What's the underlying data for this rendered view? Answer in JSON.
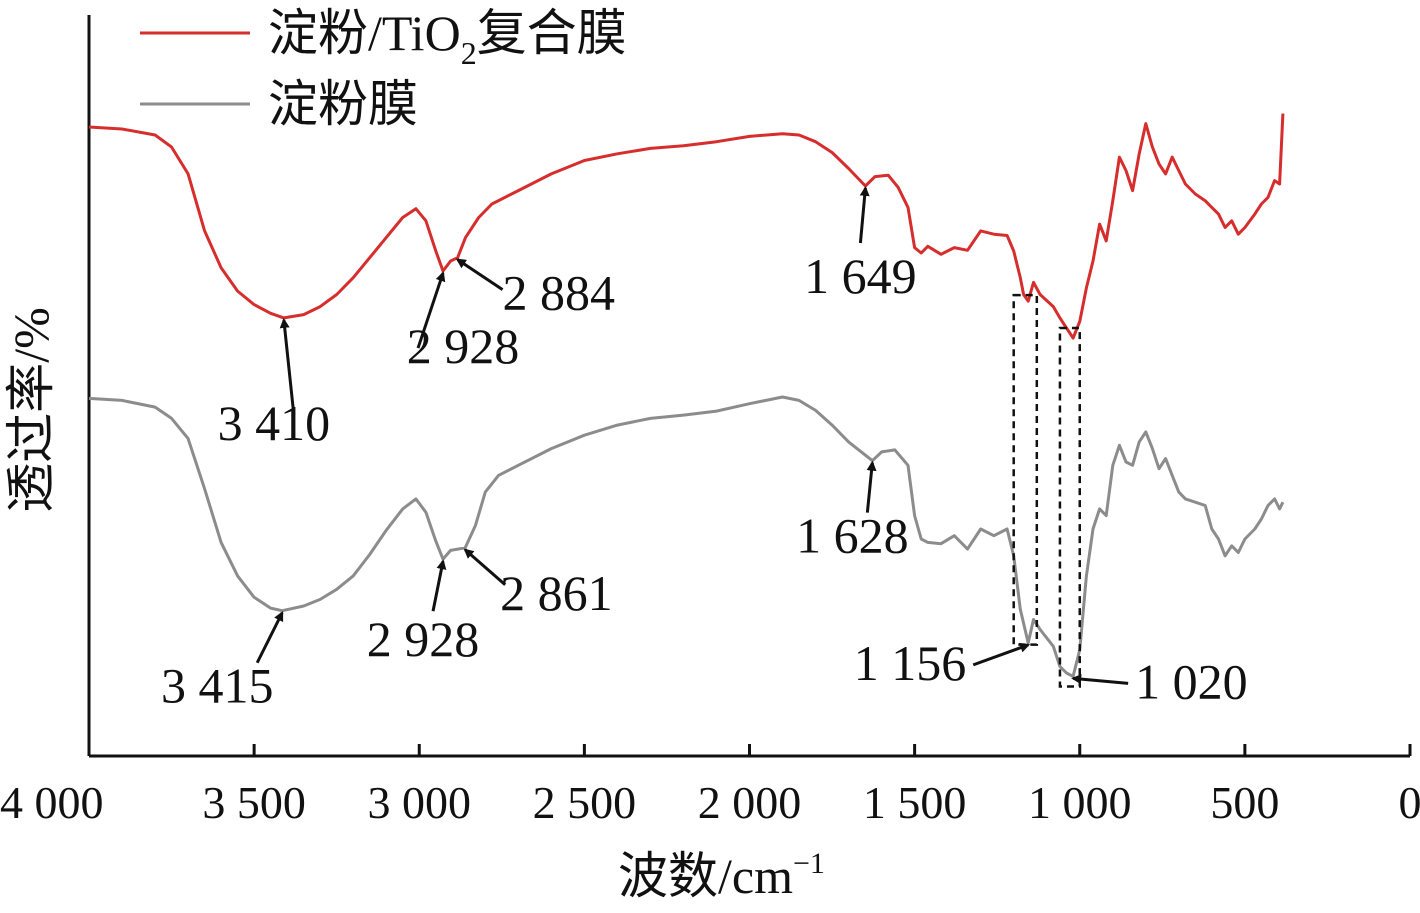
{
  "chart_data": {
    "type": "line",
    "xlabel": "波数/cm",
    "xlabel_sup": "−1",
    "ylabel": "透过率/%",
    "x_reversed": true,
    "xlim": [
      4000,
      0
    ],
    "x_ticks": [
      4000,
      3500,
      3000,
      2500,
      2000,
      1500,
      1000,
      500,
      0
    ],
    "x_tick_labels": [
      "4 000",
      "3 500",
      "3 000",
      "2 500",
      "2 000",
      "1 500",
      "1 000",
      "500",
      "0"
    ],
    "y_ticks_shown": false,
    "legend_position": "top-left",
    "series": [
      {
        "name_main": "淀粉/TiO",
        "name_sub": "2",
        "name_tail": "复合膜",
        "color": "#d62d2d",
        "points": [
          [
            4000,
            0.9
          ],
          [
            3900,
            0.897
          ],
          [
            3800,
            0.888
          ],
          [
            3750,
            0.87
          ],
          [
            3700,
            0.83
          ],
          [
            3650,
            0.745
          ],
          [
            3600,
            0.69
          ],
          [
            3550,
            0.655
          ],
          [
            3500,
            0.635
          ],
          [
            3450,
            0.622
          ],
          [
            3410,
            0.615
          ],
          [
            3350,
            0.62
          ],
          [
            3300,
            0.632
          ],
          [
            3250,
            0.65
          ],
          [
            3200,
            0.675
          ],
          [
            3150,
            0.705
          ],
          [
            3100,
            0.735
          ],
          [
            3050,
            0.765
          ],
          [
            3010,
            0.778
          ],
          [
            2980,
            0.76
          ],
          [
            2950,
            0.715
          ],
          [
            2928,
            0.685
          ],
          [
            2905,
            0.7
          ],
          [
            2884,
            0.705
          ],
          [
            2860,
            0.735
          ],
          [
            2820,
            0.765
          ],
          [
            2780,
            0.785
          ],
          [
            2700,
            0.805
          ],
          [
            2600,
            0.83
          ],
          [
            2500,
            0.85
          ],
          [
            2400,
            0.86
          ],
          [
            2300,
            0.868
          ],
          [
            2200,
            0.872
          ],
          [
            2100,
            0.878
          ],
          [
            2000,
            0.886
          ],
          [
            1900,
            0.89
          ],
          [
            1850,
            0.888
          ],
          [
            1800,
            0.878
          ],
          [
            1750,
            0.862
          ],
          [
            1700,
            0.838
          ],
          [
            1649,
            0.812
          ],
          [
            1620,
            0.826
          ],
          [
            1580,
            0.828
          ],
          [
            1550,
            0.81
          ],
          [
            1520,
            0.78
          ],
          [
            1500,
            0.72
          ],
          [
            1480,
            0.712
          ],
          [
            1460,
            0.722
          ],
          [
            1420,
            0.71
          ],
          [
            1380,
            0.72
          ],
          [
            1340,
            0.716
          ],
          [
            1300,
            0.745
          ],
          [
            1260,
            0.74
          ],
          [
            1220,
            0.738
          ],
          [
            1200,
            0.715
          ],
          [
            1180,
            0.675
          ],
          [
            1170,
            0.65
          ],
          [
            1156,
            0.64
          ],
          [
            1140,
            0.668
          ],
          [
            1120,
            0.65
          ],
          [
            1080,
            0.632
          ],
          [
            1060,
            0.615
          ],
          [
            1040,
            0.6
          ],
          [
            1020,
            0.585
          ],
          [
            1000,
            0.61
          ],
          [
            980,
            0.66
          ],
          [
            960,
            0.7
          ],
          [
            940,
            0.755
          ],
          [
            920,
            0.73
          ],
          [
            900,
            0.79
          ],
          [
            880,
            0.855
          ],
          [
            860,
            0.835
          ],
          [
            840,
            0.805
          ],
          [
            820,
            0.86
          ],
          [
            800,
            0.905
          ],
          [
            780,
            0.87
          ],
          [
            760,
            0.845
          ],
          [
            740,
            0.83
          ],
          [
            720,
            0.855
          ],
          [
            700,
            0.835
          ],
          [
            680,
            0.815
          ],
          [
            650,
            0.8
          ],
          [
            620,
            0.79
          ],
          [
            600,
            0.78
          ],
          [
            580,
            0.77
          ],
          [
            560,
            0.75
          ],
          [
            540,
            0.76
          ],
          [
            520,
            0.74
          ],
          [
            500,
            0.75
          ],
          [
            470,
            0.77
          ],
          [
            450,
            0.785
          ],
          [
            430,
            0.795
          ],
          [
            410,
            0.82
          ],
          [
            395,
            0.815
          ],
          [
            385,
            0.92
          ]
        ]
      },
      {
        "name_main": "淀粉膜",
        "color": "#8c8c8c",
        "points": [
          [
            4000,
            0.495
          ],
          [
            3900,
            0.492
          ],
          [
            3800,
            0.482
          ],
          [
            3750,
            0.465
          ],
          [
            3700,
            0.435
          ],
          [
            3650,
            0.36
          ],
          [
            3600,
            0.28
          ],
          [
            3550,
            0.23
          ],
          [
            3500,
            0.198
          ],
          [
            3450,
            0.182
          ],
          [
            3415,
            0.178
          ],
          [
            3350,
            0.185
          ],
          [
            3300,
            0.195
          ],
          [
            3250,
            0.21
          ],
          [
            3200,
            0.23
          ],
          [
            3150,
            0.262
          ],
          [
            3100,
            0.298
          ],
          [
            3050,
            0.33
          ],
          [
            3010,
            0.345
          ],
          [
            2980,
            0.325
          ],
          [
            2950,
            0.282
          ],
          [
            2928,
            0.255
          ],
          [
            2905,
            0.268
          ],
          [
            2861,
            0.272
          ],
          [
            2830,
            0.305
          ],
          [
            2800,
            0.355
          ],
          [
            2760,
            0.38
          ],
          [
            2700,
            0.395
          ],
          [
            2600,
            0.42
          ],
          [
            2500,
            0.44
          ],
          [
            2400,
            0.455
          ],
          [
            2300,
            0.465
          ],
          [
            2200,
            0.47
          ],
          [
            2100,
            0.476
          ],
          [
            2000,
            0.487
          ],
          [
            1900,
            0.497
          ],
          [
            1850,
            0.492
          ],
          [
            1800,
            0.477
          ],
          [
            1750,
            0.455
          ],
          [
            1700,
            0.43
          ],
          [
            1628,
            0.402
          ],
          [
            1600,
            0.415
          ],
          [
            1560,
            0.418
          ],
          [
            1520,
            0.395
          ],
          [
            1500,
            0.32
          ],
          [
            1480,
            0.285
          ],
          [
            1460,
            0.28
          ],
          [
            1420,
            0.278
          ],
          [
            1380,
            0.29
          ],
          [
            1340,
            0.27
          ],
          [
            1300,
            0.3
          ],
          [
            1260,
            0.29
          ],
          [
            1220,
            0.3
          ],
          [
            1200,
            0.26
          ],
          [
            1180,
            0.18
          ],
          [
            1156,
            0.13
          ],
          [
            1140,
            0.165
          ],
          [
            1120,
            0.15
          ],
          [
            1080,
            0.125
          ],
          [
            1060,
            0.095
          ],
          [
            1040,
            0.085
          ],
          [
            1020,
            0.08
          ],
          [
            1000,
            0.12
          ],
          [
            980,
            0.23
          ],
          [
            960,
            0.3
          ],
          [
            940,
            0.33
          ],
          [
            920,
            0.32
          ],
          [
            900,
            0.395
          ],
          [
            880,
            0.425
          ],
          [
            860,
            0.4
          ],
          [
            840,
            0.395
          ],
          [
            820,
            0.43
          ],
          [
            800,
            0.445
          ],
          [
            780,
            0.42
          ],
          [
            760,
            0.39
          ],
          [
            740,
            0.405
          ],
          [
            720,
            0.38
          ],
          [
            700,
            0.355
          ],
          [
            680,
            0.345
          ],
          [
            650,
            0.34
          ],
          [
            620,
            0.335
          ],
          [
            600,
            0.3
          ],
          [
            580,
            0.285
          ],
          [
            560,
            0.26
          ],
          [
            540,
            0.275
          ],
          [
            520,
            0.265
          ],
          [
            500,
            0.285
          ],
          [
            470,
            0.3
          ],
          [
            450,
            0.315
          ],
          [
            430,
            0.335
          ],
          [
            410,
            0.345
          ],
          [
            395,
            0.33
          ],
          [
            385,
            0.34
          ]
        ]
      }
    ],
    "annotations": [
      {
        "label": "3 410",
        "series": 0,
        "x": 3410
      },
      {
        "label": "2 928",
        "series": 0,
        "x": 2928
      },
      {
        "label": "2 884",
        "series": 0,
        "x": 2884
      },
      {
        "label": "1 649",
        "series": 0,
        "x": 1649
      },
      {
        "label": "3 415",
        "series": 1,
        "x": 3415
      },
      {
        "label": "2 928",
        "series": 1,
        "x": 2928
      },
      {
        "label": "2 861",
        "series": 1,
        "x": 2861
      },
      {
        "label": "1 628",
        "series": 1,
        "x": 1628
      },
      {
        "label": "1 156",
        "series": 1,
        "x": 1156
      },
      {
        "label": "1 020",
        "series": 1,
        "x": 1020
      }
    ]
  }
}
